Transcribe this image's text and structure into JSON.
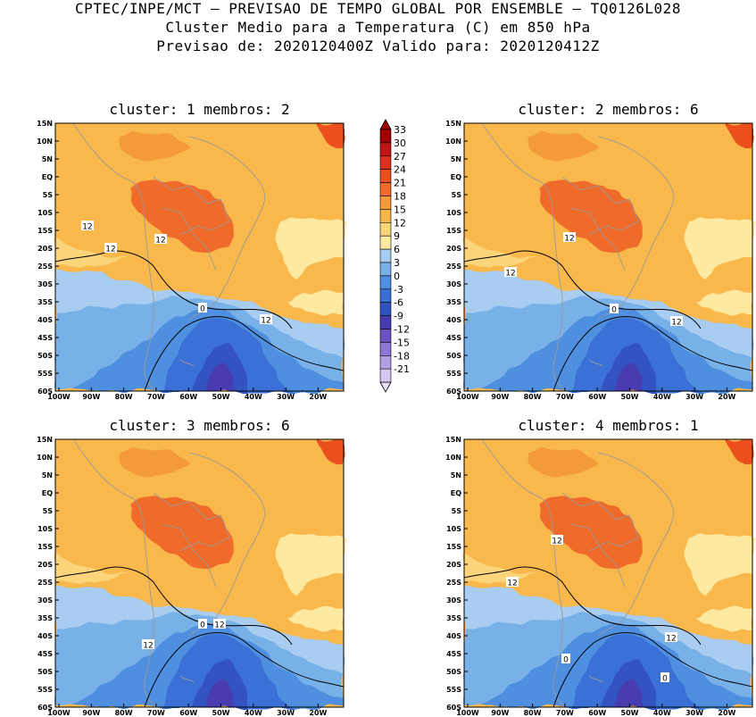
{
  "header": {
    "line1": "CPTEC/INPE/MCT – PREVISAO DE TEMPO GLOBAL POR ENSEMBLE – TQ0126L028",
    "line2": "Cluster Medio para a Temperatura (C) em 850 hPa",
    "line3": "Previsao de: 2020120400Z   Valido para: 2020120412Z"
  },
  "panels": [
    {
      "title": "cluster: 1  membros: 2"
    },
    {
      "title": "cluster: 2  membros: 6"
    },
    {
      "title": "cluster: 3  membros: 6"
    },
    {
      "title": "cluster: 4  membros: 1"
    }
  ],
  "lat_labels": [
    "15N",
    "10N",
    "5N",
    "EQ",
    "5S",
    "10S",
    "15S",
    "20S",
    "25S",
    "30S",
    "35S",
    "40S",
    "45S",
    "50S",
    "55S",
    "60S"
  ],
  "lon_labels": [
    "100W",
    "90W",
    "80W",
    "70W",
    "60W",
    "50W",
    "40W",
    "30W",
    "20W"
  ],
  "contour_labels": {
    "warm": "12",
    "zero": "0"
  },
  "colorbar": {
    "levels": [
      "33",
      "30",
      "27",
      "24",
      "21",
      "18",
      "15",
      "12",
      "9",
      "6",
      "3",
      "0",
      "-3",
      "-6",
      "-9",
      "-12",
      "-15",
      "-18",
      "-21"
    ],
    "colors": [
      "#a00000",
      "#c01818",
      "#dc3020",
      "#ea4f1e",
      "#f06a2a",
      "#f49a3a",
      "#f8b84c",
      "#fcd57a",
      "#fde9a0",
      "#a8cdf0",
      "#78b0e8",
      "#4f8fe0",
      "#3a6fd6",
      "#3252c0",
      "#4a3ab0",
      "#6a52c4",
      "#8c78d4",
      "#b0a0e2",
      "#d4c8f0"
    ],
    "top_color": "#a00000",
    "bottom_color": "#e8e2f8"
  }
}
